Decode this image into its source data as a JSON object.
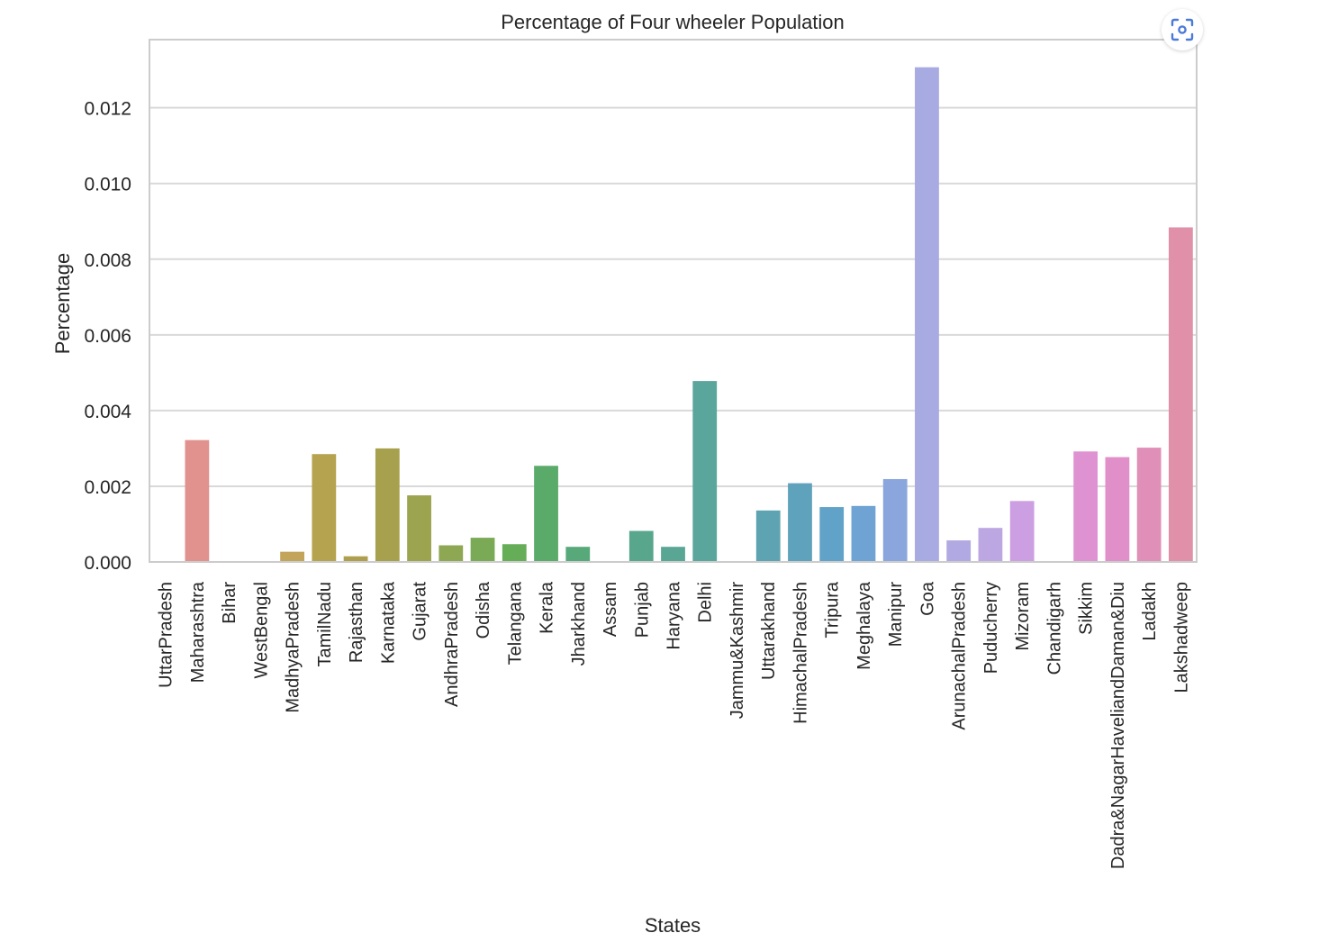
{
  "chart_data": {
    "type": "bar",
    "title": "Percentage of Four wheeler Population",
    "xlabel": "States",
    "ylabel": "Percentage",
    "ylim": [
      0,
      0.0138
    ],
    "yticks": [
      "0.000",
      "0.002",
      "0.004",
      "0.006",
      "0.008",
      "0.010",
      "0.012"
    ],
    "grid": true,
    "categories": [
      "UttarPradesh",
      "Maharashtra",
      "Bihar",
      "WestBengal",
      "MadhyaPradesh",
      "TamilNadu",
      "Rajasthan",
      "Karnataka",
      "Gujarat",
      "AndhraPradesh",
      "Odisha",
      "Telangana",
      "Kerala",
      "Jharkhand",
      "Assam",
      "Punjab",
      "Haryana",
      "Delhi",
      "Jammu&Kashmir",
      "Uttarakhand",
      "HimachalPradesh",
      "Tripura",
      "Meghalaya",
      "Manipur",
      "Goa",
      "ArunachalPradesh",
      "Puducherry",
      "Mizoram",
      "Chandigarh",
      "Sikkim",
      "Dadra&NagarHaveliandDaman&Diu",
      "Ladakh",
      "Lakshadweep"
    ],
    "values": [
      0.0,
      0.00322,
      0.0,
      0.0,
      0.00027,
      0.00285,
      0.00015,
      0.003,
      0.00176,
      0.00044,
      0.00064,
      0.00047,
      0.00254,
      0.0004,
      0.0,
      0.00082,
      0.0004,
      0.00478,
      0.0,
      0.00136,
      0.00208,
      0.00145,
      0.00148,
      0.00219,
      0.01307,
      0.00057,
      0.0009,
      0.00161,
      0.0,
      0.00292,
      0.00277,
      0.00302,
      0.00884
    ],
    "colors": [
      "#e1928e",
      "#e1928e",
      "#da9b75",
      "#d4a264",
      "#c2a45a",
      "#b6a34f",
      "#ad9f4d",
      "#a7a14d",
      "#9da44f",
      "#8ea753",
      "#7aaa55",
      "#66ad58",
      "#5aab6a",
      "#57a97a",
      "#56a883",
      "#58a78c",
      "#59a694",
      "#5aa59c",
      "#5ca3a7",
      "#5ea3b1",
      "#5fa2bc",
      "#61a2c8",
      "#6ea3d4",
      "#8aa6dc",
      "#a8abe1",
      "#b1a9e1",
      "#bda7e2",
      "#cc9fe2",
      "#d898d8",
      "#df92d2",
      "#e08fc8",
      "#e090b8",
      "#e090a8"
    ]
  }
}
